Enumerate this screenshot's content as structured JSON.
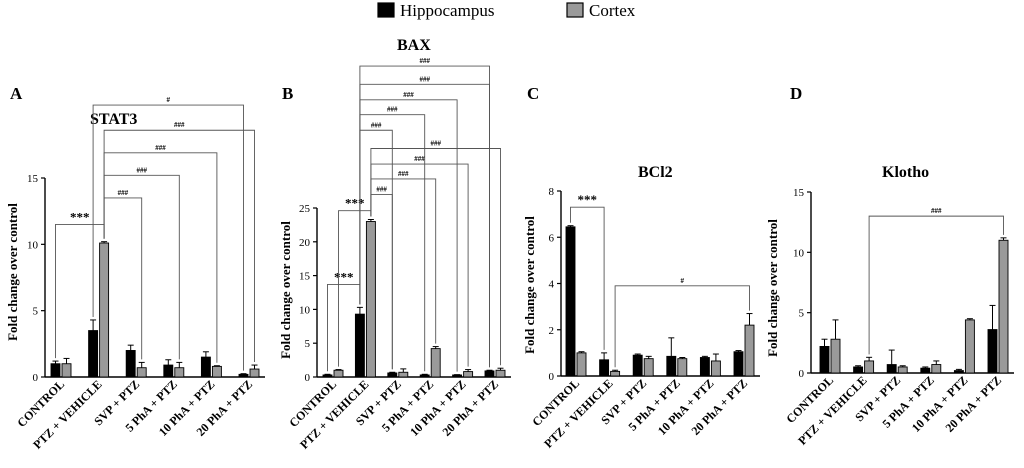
{
  "legend": {
    "items": [
      {
        "label": "Hippocampus",
        "color": "#000000"
      },
      {
        "label": "Cortex",
        "color": "#9a9a9a"
      }
    ]
  },
  "categories": [
    "CONTROL",
    "PTZ + VEHICLE",
    "SVP + PTZ",
    "5 PhA + PTZ",
    "10 PhA + PTZ",
    "20 PhA + PTZ"
  ],
  "chart_data": [
    {
      "panel_letter": "A",
      "type": "bar",
      "title": "STAT3",
      "ylabel": "Fold change over control",
      "ylim": [
        0,
        15
      ],
      "yticks": [
        0,
        5,
        10,
        15
      ],
      "series": [
        {
          "name": "Hippocampus",
          "values": [
            1.0,
            3.5,
            2.0,
            0.9,
            1.5,
            0.2
          ],
          "errors": [
            0.2,
            0.8,
            0.4,
            0.4,
            0.4,
            0.05
          ]
        },
        {
          "name": "Cortex",
          "values": [
            1.0,
            10.1,
            0.7,
            0.7,
            0.8,
            0.6
          ],
          "errors": [
            0.4,
            0.1,
            0.4,
            0.4,
            0.05,
            0.3
          ]
        }
      ],
      "annotations": [
        {
          "label": "***",
          "from": [
            0,
            0
          ],
          "to": [
            1,
            1
          ],
          "level": 11.5
        },
        {
          "label": "###",
          "from": [
            1,
            1
          ],
          "to": [
            2,
            1
          ],
          "level": 13.5
        },
        {
          "label": "###",
          "from": [
            1,
            1
          ],
          "to": [
            3,
            1
          ],
          "level": 15.2
        },
        {
          "label": "###",
          "from": [
            1,
            1
          ],
          "to": [
            4,
            1
          ],
          "level": 16.9
        },
        {
          "label": "###",
          "from": [
            1,
            1
          ],
          "to": [
            5,
            1
          ],
          "level": 18.6
        },
        {
          "label": "#",
          "from": [
            1,
            0
          ],
          "to": [
            5,
            0
          ],
          "level": 20.5
        }
      ]
    },
    {
      "panel_letter": "B",
      "type": "bar",
      "title": "BAX",
      "ylabel": "Fold change over control",
      "ylim": [
        0,
        25
      ],
      "yticks": [
        0,
        5,
        10,
        15,
        20,
        25
      ],
      "series": [
        {
          "name": "Hippocampus",
          "values": [
            0.3,
            9.3,
            0.6,
            0.3,
            0.3,
            0.9
          ],
          "errors": [
            0.1,
            1.0,
            0.1,
            0.1,
            0.05,
            0.1
          ]
        },
        {
          "name": "Cortex",
          "values": [
            1.0,
            23.0,
            0.7,
            4.2,
            0.8,
            1.0
          ],
          "errors": [
            0.1,
            0.3,
            0.5,
            0.3,
            0.3,
            0.3
          ]
        }
      ],
      "annotations": [
        {
          "label": "***",
          "from": [
            0,
            0
          ],
          "to": [
            1,
            0
          ],
          "level": 13.7
        },
        {
          "label": "***",
          "from": [
            0,
            1
          ],
          "to": [
            1,
            1
          ],
          "level": 24.6
        },
        {
          "label": "###",
          "from": [
            1,
            1
          ],
          "to": [
            2,
            0
          ],
          "level": 27.0
        },
        {
          "label": "###",
          "from": [
            1,
            1
          ],
          "to": [
            3,
            1
          ],
          "level": 29.3
        },
        {
          "label": "###",
          "from": [
            1,
            1
          ],
          "to": [
            4,
            1
          ],
          "level": 31.5
        },
        {
          "label": "###",
          "from": [
            1,
            1
          ],
          "to": [
            5,
            1
          ],
          "level": 33.8
        },
        {
          "label": "###",
          "from": [
            1,
            0
          ],
          "to": [
            2,
            0
          ],
          "level": 36.5
        },
        {
          "label": "###",
          "from": [
            1,
            0
          ],
          "to": [
            3,
            0
          ],
          "level": 38.8
        },
        {
          "label": "###",
          "from": [
            1,
            0
          ],
          "to": [
            4,
            0
          ],
          "level": 41.0
        },
        {
          "label": "###",
          "from": [
            1,
            0
          ],
          "to": [
            5,
            0
          ],
          "level": 43.3
        },
        {
          "label": "###",
          "from": [
            1,
            0
          ],
          "to": [
            5,
            0
          ],
          "level": 46.0
        }
      ]
    },
    {
      "panel_letter": "C",
      "type": "bar",
      "title": "BCl2",
      "ylabel": "Fold change over control",
      "ylim": [
        0,
        8
      ],
      "yticks": [
        0,
        2,
        4,
        6,
        8
      ],
      "series": [
        {
          "name": "Hippocampus",
          "values": [
            6.45,
            0.7,
            0.9,
            0.85,
            0.8,
            1.05
          ],
          "errors": [
            0.05,
            0.3,
            0.05,
            0.8,
            0.05,
            0.05
          ]
        },
        {
          "name": "Cortex",
          "values": [
            1.0,
            0.2,
            0.75,
            0.75,
            0.65,
            2.2
          ],
          "errors": [
            0.05,
            0.05,
            0.1,
            0.05,
            0.3,
            0.5
          ]
        }
      ],
      "annotations": [
        {
          "label": "***",
          "from": [
            0,
            0
          ],
          "to": [
            1,
            0
          ],
          "level": 7.3
        },
        {
          "label": "#",
          "from": [
            1,
            1
          ],
          "to": [
            5,
            1
          ],
          "level": 3.9
        }
      ]
    },
    {
      "panel_letter": "D",
      "type": "bar",
      "title": "Klotho",
      "ylabel": "Fold change over control",
      "ylim": [
        0,
        15
      ],
      "yticks": [
        0,
        5,
        10,
        15
      ],
      "series": [
        {
          "name": "Hippocampus",
          "values": [
            2.2,
            0.5,
            0.7,
            0.4,
            0.2,
            3.6
          ],
          "errors": [
            0.6,
            0.1,
            1.2,
            0.1,
            0.1,
            2.0
          ]
        },
        {
          "name": "Cortex",
          "values": [
            2.8,
            1.0,
            0.5,
            0.7,
            4.4,
            11.0
          ],
          "errors": [
            1.6,
            0.3,
            0.1,
            0.3,
            0.1,
            0.2
          ]
        }
      ],
      "annotations": [
        {
          "label": "###",
          "from": [
            1,
            1
          ],
          "to": [
            5,
            1
          ],
          "level": 13.0
        }
      ]
    }
  ]
}
